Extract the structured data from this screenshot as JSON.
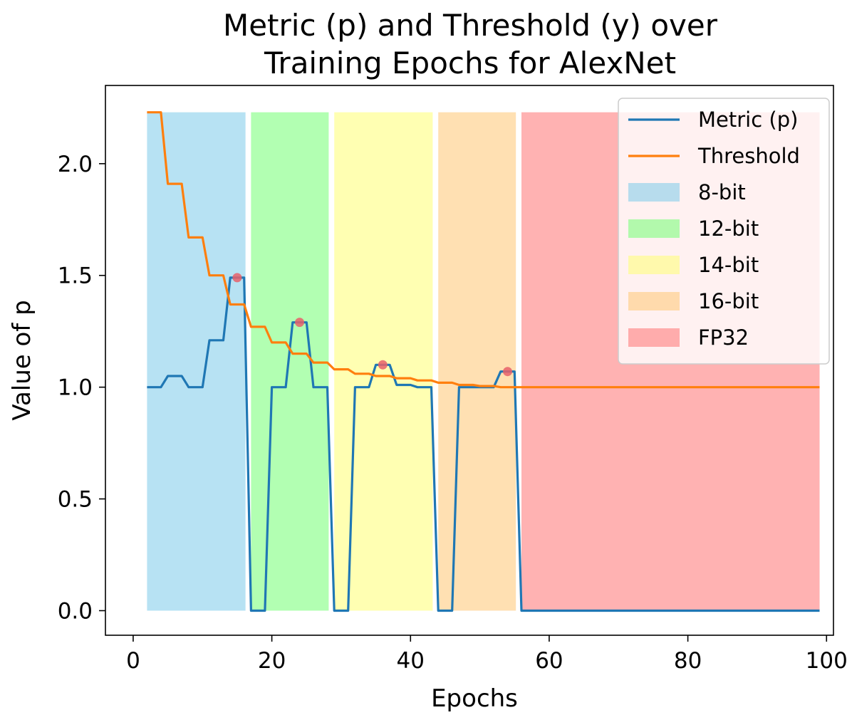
{
  "chart_data": {
    "type": "line",
    "title_lines": [
      "Metric (p) and Threshold (y) over",
      "Training Epochs for AlexNet"
    ],
    "xlabel": "Epochs",
    "ylabel": "Value of p",
    "xlim": [
      -4,
      101
    ],
    "ylim": [
      -0.11,
      2.35
    ],
    "xticks": [
      0,
      20,
      40,
      60,
      80,
      100
    ],
    "xtick_labels": [
      "0",
      "20",
      "40",
      "60",
      "80",
      "100"
    ],
    "yticks": [
      0.0,
      0.5,
      1.0,
      1.5,
      2.0
    ],
    "ytick_labels": [
      "0.0",
      "0.5",
      "1.0",
      "1.5",
      "2.0"
    ],
    "grid": false,
    "legend_position": "top-right",
    "regions": [
      {
        "name": "8-bit",
        "x0": 2,
        "x1": 16.2,
        "color": "#87ceeb"
      },
      {
        "name": "12-bit",
        "x0": 17,
        "x1": 28.2,
        "color": "#7fff7f"
      },
      {
        "name": "14-bit",
        "x0": 29,
        "x1": 43.2,
        "color": "#ffff7f"
      },
      {
        "name": "16-bit",
        "x0": 44,
        "x1": 55.2,
        "color": "#ffcb7f"
      },
      {
        "name": "FP32",
        "x0": 56,
        "x1": 99,
        "color": "#ff7f7f"
      }
    ],
    "region_top": 2.23,
    "series": [
      {
        "name": "Metric (p)",
        "color": "#1f77b4",
        "x": [
          2,
          4,
          5,
          7,
          8,
          10,
          11,
          13,
          14,
          16,
          17,
          19,
          20,
          22,
          23,
          25,
          26,
          28,
          29,
          31,
          32,
          34,
          35,
          37,
          38,
          40,
          41,
          43,
          44,
          46,
          47,
          49,
          50,
          52,
          53,
          55,
          56,
          99
        ],
        "y": [
          1.0,
          1.0,
          1.05,
          1.05,
          1.0,
          1.0,
          1.21,
          1.21,
          1.49,
          1.49,
          0.0,
          0.0,
          1.0,
          1.0,
          1.29,
          1.29,
          1.0,
          1.0,
          0.0,
          0.0,
          1.0,
          1.0,
          1.1,
          1.1,
          1.01,
          1.01,
          1.0,
          1.0,
          0.0,
          0.0,
          1.0,
          1.0,
          1.0,
          1.0,
          1.07,
          1.07,
          0.0,
          0.0
        ]
      },
      {
        "name": "Threshold",
        "color": "#ff7f0e",
        "x": [
          2,
          4,
          5,
          7,
          8,
          10,
          11,
          13,
          14,
          16,
          17,
          19,
          20,
          22,
          23,
          25,
          26,
          28,
          29,
          31,
          32,
          34,
          35,
          37,
          38,
          40,
          41,
          43,
          44,
          46,
          47,
          49,
          50,
          52,
          53,
          99
        ],
        "y": [
          2.23,
          2.23,
          1.91,
          1.91,
          1.67,
          1.67,
          1.5,
          1.5,
          1.37,
          1.37,
          1.27,
          1.27,
          1.2,
          1.2,
          1.15,
          1.15,
          1.11,
          1.11,
          1.08,
          1.08,
          1.06,
          1.06,
          1.05,
          1.05,
          1.04,
          1.04,
          1.03,
          1.03,
          1.02,
          1.02,
          1.01,
          1.01,
          1.005,
          1.005,
          1.0,
          1.0
        ]
      }
    ],
    "markers": {
      "color": "#e8606a",
      "points": [
        {
          "x": 15,
          "y": 1.49
        },
        {
          "x": 24,
          "y": 1.29
        },
        {
          "x": 36,
          "y": 1.1
        },
        {
          "x": 54,
          "y": 1.07
        }
      ]
    }
  }
}
